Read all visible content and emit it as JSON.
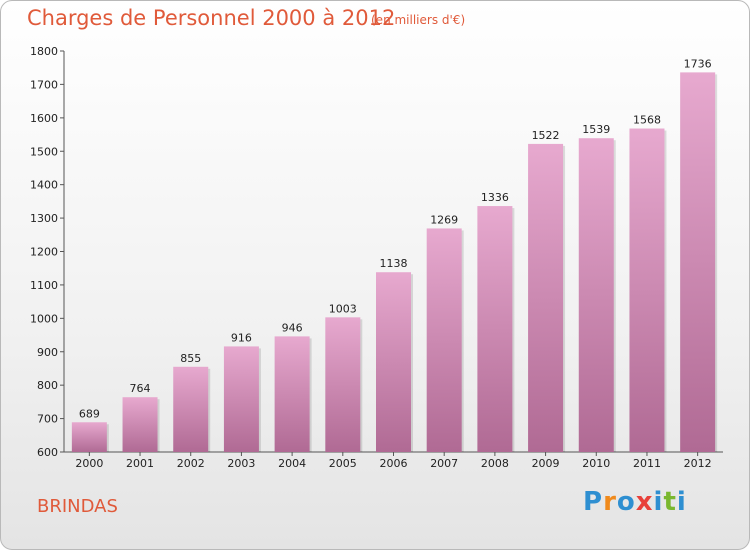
{
  "title": "Charges de Personnel 2000 à 2012",
  "subtitle": "(en milliers d'€)",
  "city": "BRINDAS",
  "logo": {
    "letters": [
      "P",
      "r",
      "o",
      "x",
      "i",
      "t",
      "i"
    ],
    "colors": [
      "#2e8fd1",
      "#f08a1c",
      "#2e8fd1",
      "#e8403a",
      "#2e8fd1",
      "#7ab72f",
      "#2e8fd1"
    ]
  },
  "colors": {
    "bar_light": "#e7a9cf",
    "bar_dark": "#b06a94",
    "text_accent": "#e05a3a"
  },
  "chart_data": {
    "type": "bar",
    "title": "Charges de Personnel 2000 à 2012",
    "subtitle": "(en milliers d'€)",
    "categories": [
      "2000",
      "2001",
      "2002",
      "2003",
      "2004",
      "2005",
      "2006",
      "2007",
      "2008",
      "2009",
      "2010",
      "2011",
      "2012"
    ],
    "values": [
      689,
      764,
      855,
      916,
      946,
      1003,
      1138,
      1269,
      1336,
      1522,
      1539,
      1568,
      1736
    ],
    "ylim": [
      600,
      1800
    ],
    "yticks": [
      600,
      700,
      800,
      900,
      1000,
      1100,
      1200,
      1300,
      1400,
      1500,
      1600,
      1700,
      1800
    ],
    "grid": false,
    "legend": "none"
  }
}
